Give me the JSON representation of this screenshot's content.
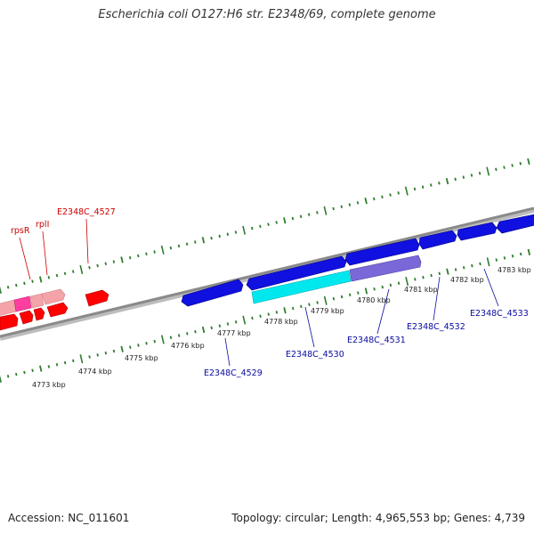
{
  "title": "Escherichia coli O127:H6 str. E2348/69, complete genome",
  "footer": {
    "accession": "Accession: NC_011601",
    "summary": "Topology: circular; Length: 4,965,553 bp; Genes: 4,739"
  },
  "colors": {
    "strand_line": "#8a8a8a",
    "tick": "#2e7d2e",
    "gene_red": "#ff0000",
    "gene_pink": "#f4a3a8",
    "gene_magenta": "#ff3fa0",
    "gene_blue": "#1010e0",
    "gene_cyan": "#00e8ee",
    "gene_lavender": "#7b68d8",
    "label_red": "#cc0000",
    "label_blue": "#0a0aa0"
  },
  "scale": {
    "labels": [
      {
        "text": "4773 kbp",
        "kbp": 4773
      },
      {
        "text": "4774 kbp",
        "kbp": 4774
      },
      {
        "text": "4775 kbp",
        "kbp": 4775
      },
      {
        "text": "4776 kbp",
        "kbp": 4776
      },
      {
        "text": "4777 kbp",
        "kbp": 4777
      },
      {
        "text": "4778 kbp",
        "kbp": 4778
      },
      {
        "text": "4779 kbp",
        "kbp": 4779
      },
      {
        "text": "4780 kbp",
        "kbp": 4780
      },
      {
        "text": "4781 kbp",
        "kbp": 4781
      },
      {
        "text": "4782 kbp",
        "kbp": 4782
      },
      {
        "text": "4783 kbp",
        "kbp": 4783
      }
    ]
  },
  "genes": {
    "forward_outer": [
      {
        "name": "rpsR",
        "color": "gene_magenta"
      },
      {
        "name": "rplI",
        "color": "gene_pink"
      },
      {
        "name": "E2348C_4527",
        "color": "gene_red"
      }
    ],
    "labels_red": [
      {
        "text": "rpsR"
      },
      {
        "text": "rplI"
      },
      {
        "text": "E2348C_4527"
      }
    ],
    "labels_blue": [
      {
        "text": "E2348C_4529"
      },
      {
        "text": "E2348C_4530"
      },
      {
        "text": "E2348C_4531"
      },
      {
        "text": "E2348C_4532"
      },
      {
        "text": "E2348C_4533"
      }
    ]
  }
}
